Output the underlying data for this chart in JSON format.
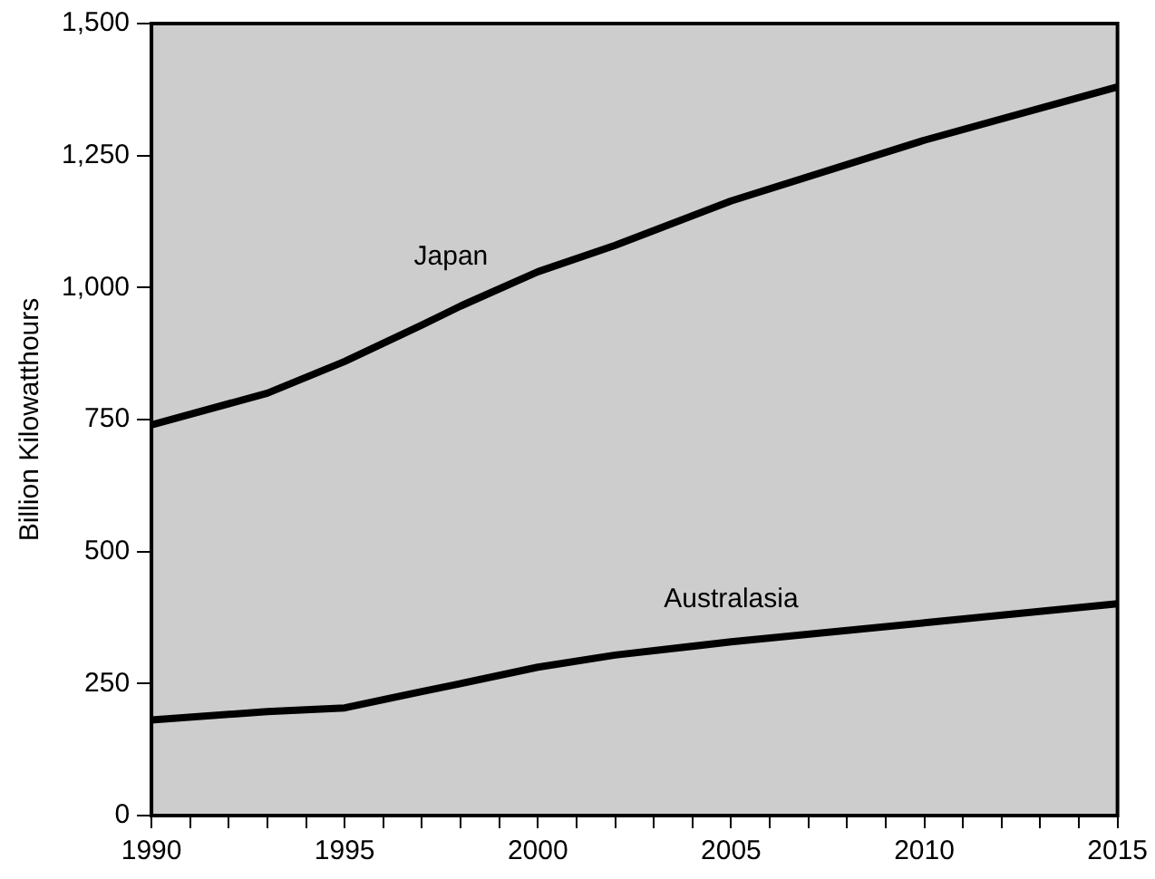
{
  "chart_data": {
    "type": "line",
    "ylabel": "Billion Kilowatthours",
    "x": [
      1990,
      1993,
      1995,
      1997,
      1998,
      2000,
      2002,
      2005,
      2010,
      2015
    ],
    "series": [
      {
        "name": "Japan",
        "color": "#000000",
        "values": [
          740,
          800,
          860,
          929,
          965,
          1030,
          1080,
          1164,
          1279,
          1380
        ]
      },
      {
        "name": "Australasia",
        "color": "#000000",
        "values": [
          181,
          197,
          204,
          235,
          250,
          281,
          304,
          329,
          365,
          401
        ]
      }
    ],
    "xlim": [
      1990,
      2015
    ],
    "xticks": [
      1990,
      {
        "value": 1991,
        "label": null
      },
      {
        "value": 1992,
        "label": null
      },
      {
        "value": 1993,
        "label": null
      },
      {
        "value": 1994,
        "label": null
      },
      1995,
      {
        "value": 1996,
        "label": null
      },
      {
        "value": 1997,
        "label": null
      },
      {
        "value": 1998,
        "label": null
      },
      {
        "value": 1999,
        "label": null
      },
      2000,
      {
        "value": 2001,
        "label": null
      },
      {
        "value": 2002,
        "label": null
      },
      {
        "value": 2003,
        "label": null
      },
      {
        "value": 2004,
        "label": null
      },
      2005,
      {
        "value": 2006,
        "label": null
      },
      {
        "value": 2007,
        "label": null
      },
      {
        "value": 2008,
        "label": null
      },
      {
        "value": 2009,
        "label": null
      },
      2010,
      {
        "value": 2011,
        "label": null
      },
      {
        "value": 2012,
        "label": null
      },
      {
        "value": 2013,
        "label": null
      },
      {
        "value": 2014,
        "label": null
      },
      2015
    ],
    "ylim": [
      0,
      1500
    ],
    "yticks": [
      0,
      250,
      500,
      750,
      {
        "value": 1000,
        "label": "1,000"
      },
      {
        "value": 1250,
        "label": "1,250"
      },
      {
        "value": 1500,
        "label": "1,500"
      }
    ],
    "grid": false,
    "legend": false,
    "marker": "none",
    "line_style": "solid"
  }
}
